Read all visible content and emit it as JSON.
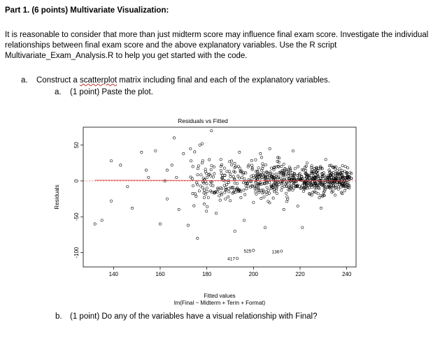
{
  "document": {
    "heading": "Part 1. (6 points) Multivariate Visualization:",
    "intro": "It is reasonable to consider that more than just midterm score may influence final exam score. Investigate the individual relationships between final exam score and the above explanatory variables. Use the R script Multivariate_Exam_Analysis.R to help you get started with the code.",
    "item_a": {
      "marker": "a.",
      "text_before": "Construct a ",
      "text_squiggle": "scatterplot",
      "text_after": " matrix including final and each of the explanatory variables."
    },
    "item_a_i": {
      "marker": "a.",
      "text": "(1 point) Paste the plot."
    },
    "item_b": {
      "marker": "b.",
      "text": "(1 point) Do any of the variables have a visual relationship with Final?"
    }
  },
  "chart_data": {
    "type": "scatter",
    "title": "Residuals vs Fitted",
    "xlabel": "Fitted values",
    "xlabel2": "lm(Final ~ Midterm + Term + Format)",
    "ylabel": "Residuals",
    "xlim": [
      127,
      244
    ],
    "ylim": [
      -120,
      75
    ],
    "x_ticks": [
      140,
      160,
      180,
      200,
      220,
      240
    ],
    "y_ticks": [
      50,
      0,
      -50,
      -100
    ],
    "point_color": "#000000",
    "zero_line_color": "#d94040",
    "smooth_line_color": "#e04040",
    "grid": false,
    "labeled_points": [
      {
        "label": "525",
        "x": 200,
        "y": -97
      },
      {
        "label": "136",
        "x": 212,
        "y": -98
      },
      {
        "label": "417",
        "x": 193,
        "y": -108
      }
    ],
    "sample_points": [
      [
        132,
        -60
      ],
      [
        135,
        -55
      ],
      [
        139,
        -28
      ],
      [
        139,
        28
      ],
      [
        143,
        22
      ],
      [
        146,
        -8
      ],
      [
        148,
        -38
      ],
      [
        152,
        40
      ],
      [
        154,
        15
      ],
      [
        155,
        5
      ],
      [
        158,
        42
      ],
      [
        160,
        -60
      ],
      [
        162,
        0
      ],
      [
        163,
        15
      ],
      [
        163,
        -25
      ],
      [
        165,
        22
      ],
      [
        166,
        60
      ],
      [
        167,
        5
      ],
      [
        168,
        -40
      ],
      [
        170,
        38
      ],
      [
        172,
        -62
      ],
      [
        173,
        45
      ],
      [
        174,
        20
      ],
      [
        175,
        -18
      ],
      [
        176,
        -80
      ],
      [
        177,
        50
      ],
      [
        178,
        52
      ],
      [
        180,
        -10
      ],
      [
        182,
        70
      ],
      [
        184,
        -45
      ],
      [
        186,
        30
      ],
      [
        188,
        -25
      ],
      [
        190,
        10
      ],
      [
        192,
        -70
      ],
      [
        194,
        40
      ],
      [
        196,
        -55
      ],
      [
        198,
        22
      ],
      [
        200,
        -30
      ],
      [
        203,
        38
      ],
      [
        205,
        -65
      ],
      [
        207,
        45
      ],
      [
        209,
        -15
      ],
      [
        211,
        32
      ],
      [
        213,
        -40
      ],
      [
        215,
        10
      ],
      [
        217,
        42
      ],
      [
        219,
        -35
      ],
      [
        221,
        -65
      ],
      [
        223,
        25
      ],
      [
        225,
        -20
      ],
      [
        227,
        12
      ],
      [
        229,
        -38
      ],
      [
        231,
        30
      ],
      [
        233,
        8
      ],
      [
        235,
        -20
      ],
      [
        237,
        10
      ],
      [
        239,
        0
      ],
      [
        240,
        5
      ]
    ]
  }
}
